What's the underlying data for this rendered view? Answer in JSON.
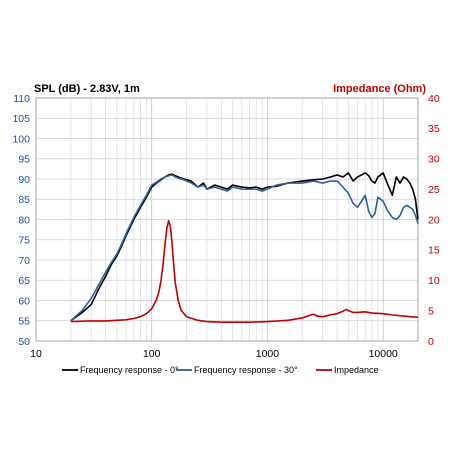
{
  "chart_data": {
    "type": "line",
    "title_left": "SPL (dB) - 2.83V, 1m",
    "title_right": "Impedance (Ohm)",
    "x_scale": "log",
    "xlim": [
      10,
      20000
    ],
    "x_ticks": [
      10,
      100,
      1000,
      10000
    ],
    "x_tick_labels": [
      "10",
      "100",
      "1000",
      "10000"
    ],
    "ylim_left": [
      50,
      110
    ],
    "y_ticks_left": [
      "50",
      "55",
      "60",
      "65",
      "70",
      "75",
      "80",
      "85",
      "90",
      "95",
      "100",
      "105",
      "110"
    ],
    "ylim_right": [
      0,
      40
    ],
    "y_ticks_right": [
      "0",
      "5",
      "10",
      "15",
      "20",
      "25",
      "30",
      "35",
      "40"
    ],
    "grid": true,
    "legend_position": "bottom",
    "colors": {
      "left_axis": "#1f4e9e",
      "right_axis": "#c00000"
    },
    "series": [
      {
        "name": "Frequency response - 0°",
        "color": "#000000",
        "axis": "left",
        "x": [
          20,
          25,
          30,
          35,
          40,
          45,
          50,
          55,
          60,
          70,
          80,
          90,
          100,
          110,
          120,
          130,
          140,
          150,
          160,
          170,
          180,
          190,
          200,
          220,
          250,
          280,
          300,
          350,
          400,
          450,
          500,
          600,
          700,
          800,
          900,
          1000,
          1200,
          1500,
          2000,
          2500,
          3000,
          3500,
          4000,
          4500,
          5000,
          5500,
          6000,
          6500,
          7000,
          7500,
          8000,
          8500,
          9000,
          10000,
          11000,
          12000,
          13000,
          14000,
          15000,
          16000,
          17000,
          18000,
          19000,
          20000
        ],
        "y": [
          55,
          57,
          59,
          63,
          66,
          69,
          71,
          73.5,
          76,
          80,
          83,
          85.5,
          88,
          89,
          89.8,
          90.5,
          91,
          91.2,
          90.8,
          90.5,
          90.2,
          90,
          89.8,
          89.5,
          88,
          89,
          87.5,
          88.5,
          88,
          87.5,
          88.5,
          88,
          87.8,
          88,
          87.5,
          88,
          88.2,
          89,
          89.5,
          89.8,
          90,
          90.5,
          91,
          90.5,
          91.5,
          89.5,
          90.5,
          91,
          91.5,
          90.8,
          89.5,
          89,
          90.5,
          91.5,
          88.5,
          86,
          90.5,
          89,
          90.5,
          90,
          89,
          87.5,
          85,
          80
        ]
      },
      {
        "name": "Frequency response - 30°",
        "color": "#2f5f9e",
        "axis": "left",
        "x": [
          20,
          25,
          30,
          35,
          40,
          45,
          50,
          55,
          60,
          70,
          80,
          90,
          100,
          110,
          120,
          130,
          140,
          150,
          160,
          170,
          180,
          190,
          200,
          220,
          250,
          280,
          300,
          350,
          400,
          450,
          500,
          600,
          700,
          800,
          900,
          1000,
          1200,
          1500,
          2000,
          2500,
          3000,
          3500,
          4000,
          4500,
          5000,
          5500,
          6000,
          6500,
          7000,
          7500,
          8000,
          8500,
          9000,
          10000,
          11000,
          12000,
          13000,
          14000,
          15000,
          16000,
          17000,
          18000,
          19000,
          20000
        ],
        "y": [
          55,
          57.5,
          60.5,
          64,
          67,
          69.5,
          71.5,
          74,
          76.5,
          80.5,
          83.5,
          86,
          88.5,
          89.2,
          90,
          90.5,
          90.8,
          91,
          90.5,
          90.2,
          90,
          89.8,
          89.5,
          89,
          88,
          88.5,
          87.5,
          88,
          87.5,
          87,
          88,
          87.5,
          87.5,
          87.5,
          87,
          87.5,
          88.5,
          89,
          89,
          89.5,
          89,
          89.5,
          89.5,
          88,
          86.5,
          84,
          83,
          84.5,
          86,
          82,
          80.5,
          81.5,
          85.5,
          84.5,
          82,
          80.5,
          80,
          81,
          83,
          83.5,
          83,
          82.5,
          81,
          79
        ]
      },
      {
        "name": "Impedance",
        "color": "#c00000",
        "axis": "right",
        "x": [
          20,
          30,
          40,
          50,
          60,
          70,
          80,
          90,
          100,
          110,
          115,
          120,
          125,
          130,
          135,
          140,
          145,
          150,
          155,
          160,
          170,
          180,
          200,
          250,
          300,
          400,
          500,
          700,
          1000,
          1500,
          2000,
          2300,
          2500,
          2700,
          3000,
          3500,
          4000,
          4500,
          4800,
          5000,
          5500,
          6000,
          7000,
          8000,
          10000,
          12000,
          15000,
          20000
        ],
        "y": [
          3.2,
          3.3,
          3.3,
          3.4,
          3.5,
          3.7,
          4,
          4.5,
          5.3,
          6.8,
          8,
          9.8,
          12.5,
          15.8,
          18.5,
          19.8,
          18.8,
          16,
          12.5,
          9.5,
          6.5,
          5,
          4,
          3.4,
          3.2,
          3.1,
          3.1,
          3.1,
          3.2,
          3.4,
          3.8,
          4.2,
          4.4,
          4.1,
          4,
          4.3,
          4.5,
          4.9,
          5.2,
          5,
          4.7,
          4.7,
          4.8,
          4.6,
          4.5,
          4.3,
          4.1,
          3.9
        ]
      }
    ]
  }
}
